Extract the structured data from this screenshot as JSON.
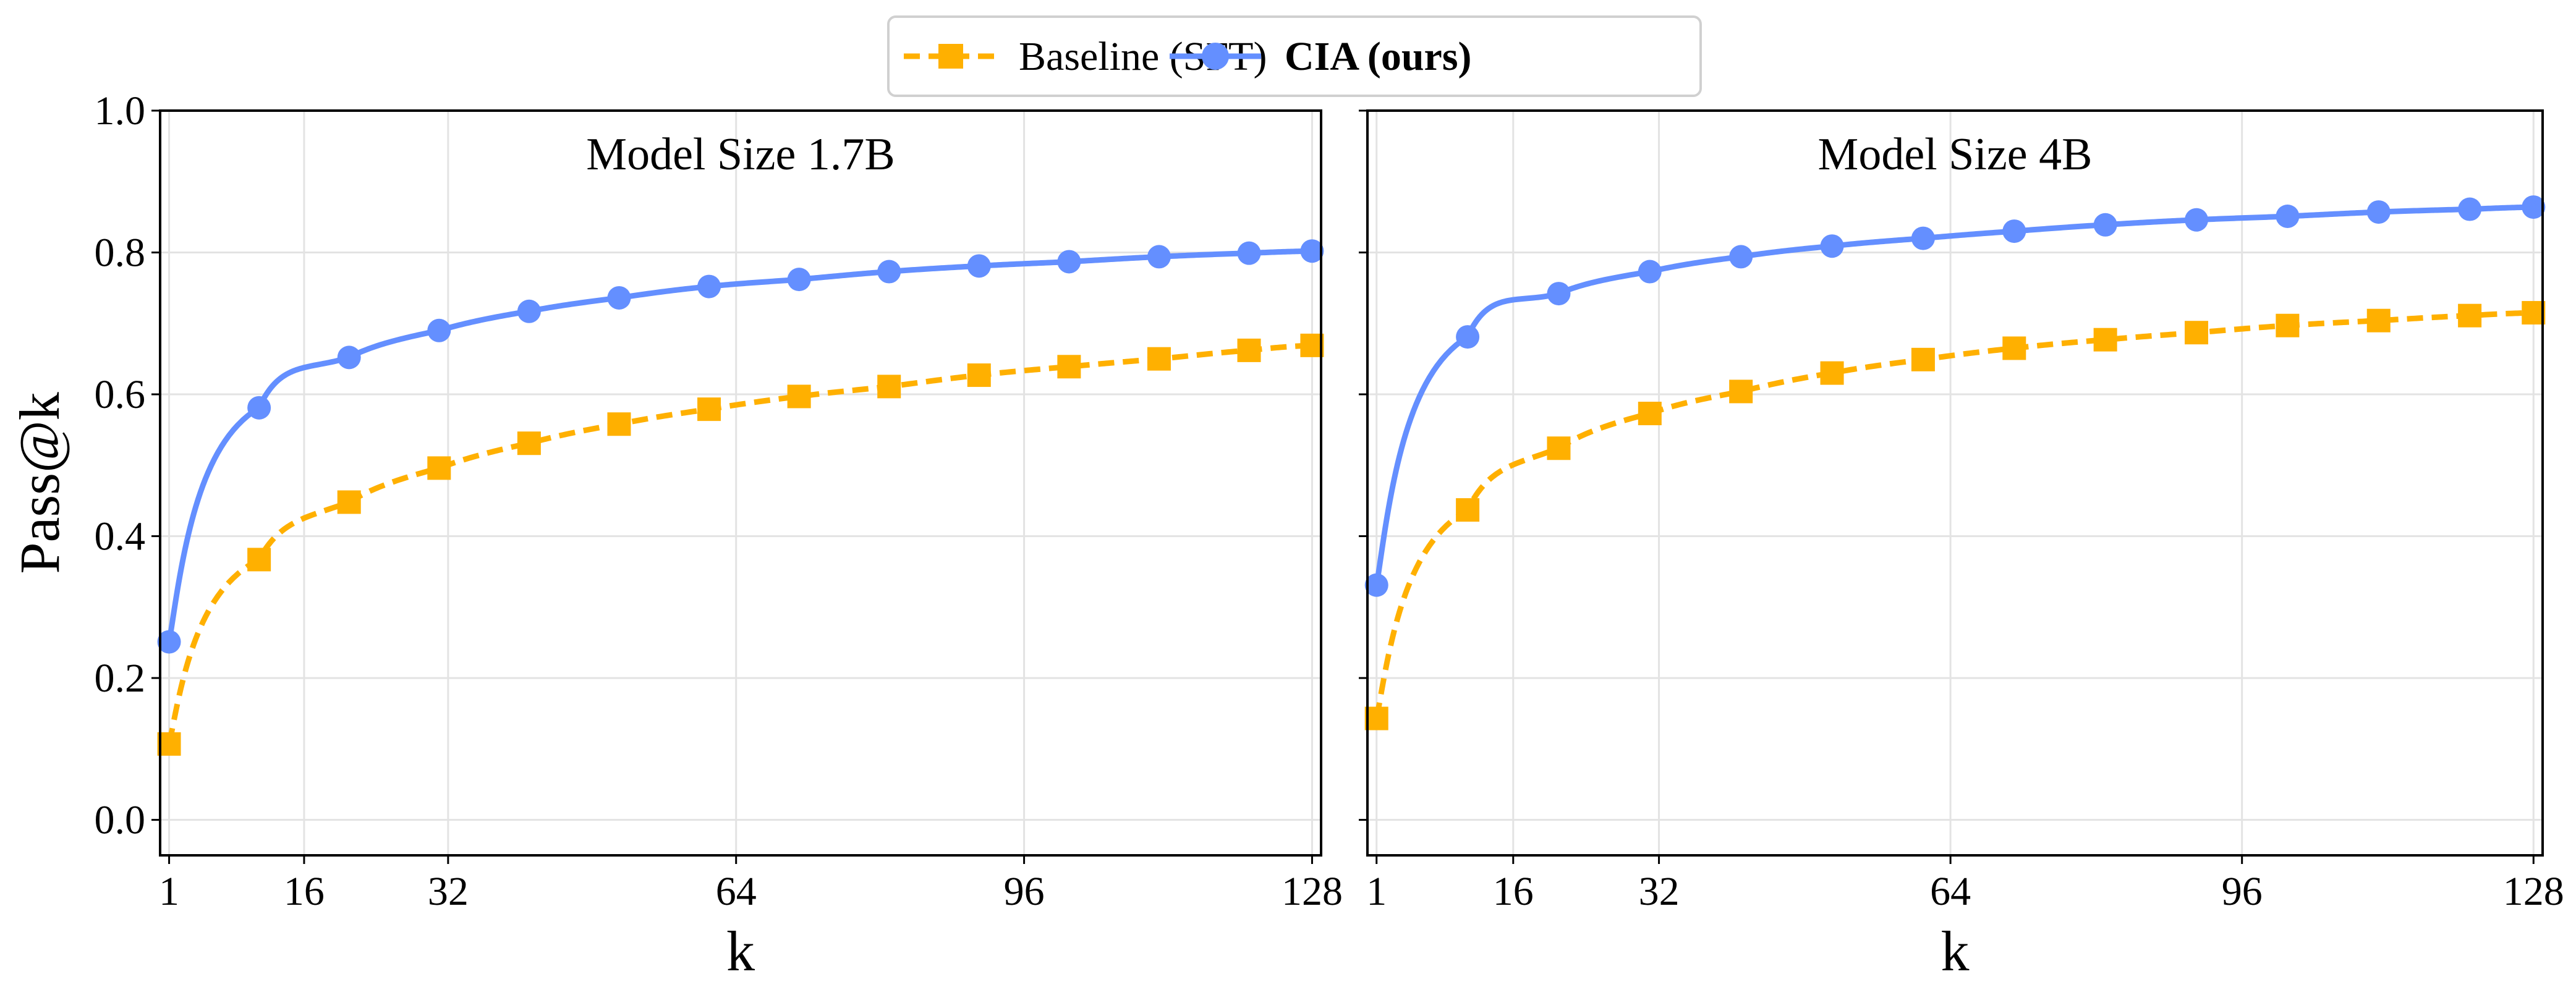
{
  "legend": {
    "placement": "top-center",
    "entries": [
      {
        "label": "Baseline (SFT)",
        "color": "#FFB000",
        "marker": "square",
        "line": "dashed"
      },
      {
        "label": "CIA (ours)",
        "color": "#648FFF",
        "marker": "circle",
        "line": "solid"
      }
    ]
  },
  "chart_data": [
    {
      "type": "line",
      "title": "Model Size 1.7B",
      "xlabel": "k",
      "ylabel": "Pass@k",
      "xlim": [
        0,
        129
      ],
      "ylim": [
        -0.05,
        1.0
      ],
      "xticks": [
        1,
        16,
        32,
        64,
        96,
        128
      ],
      "yticks": [
        "0.0",
        "0.2",
        "0.4",
        "0.6",
        "0.8",
        "1.0"
      ],
      "grid": true,
      "x": [
        1,
        11,
        21,
        31,
        41,
        51,
        61,
        71,
        81,
        91,
        101,
        111,
        121,
        128
      ],
      "series": [
        {
          "name": "Baseline (SFT)",
          "values": [
            0.107,
            0.367,
            0.448,
            0.496,
            0.531,
            0.558,
            0.579,
            0.597,
            0.611,
            0.627,
            0.639,
            0.65,
            0.662,
            0.669
          ]
        },
        {
          "name": "CIA (ours)",
          "values": [
            0.251,
            0.581,
            0.652,
            0.69,
            0.717,
            0.736,
            0.752,
            0.762,
            0.773,
            0.781,
            0.787,
            0.794,
            0.799,
            0.802
          ]
        }
      ]
    },
    {
      "type": "line",
      "title": "Model Size 4B",
      "xlabel": "k",
      "ylabel": "",
      "xlim": [
        0,
        129
      ],
      "ylim": [
        -0.05,
        1.0
      ],
      "xticks": [
        1,
        16,
        32,
        64,
        96,
        128
      ],
      "yticks": [],
      "grid": true,
      "x": [
        1,
        11,
        21,
        31,
        41,
        51,
        61,
        71,
        81,
        91,
        101,
        111,
        121,
        128
      ],
      "series": [
        {
          "name": "Baseline (SFT)",
          "values": [
            0.143,
            0.437,
            0.524,
            0.573,
            0.604,
            0.63,
            0.649,
            0.665,
            0.677,
            0.687,
            0.697,
            0.704,
            0.711,
            0.715
          ]
        },
        {
          "name": "CIA (ours)",
          "values": [
            0.331,
            0.681,
            0.742,
            0.773,
            0.794,
            0.809,
            0.82,
            0.83,
            0.839,
            0.846,
            0.851,
            0.857,
            0.861,
            0.864
          ]
        }
      ]
    }
  ]
}
